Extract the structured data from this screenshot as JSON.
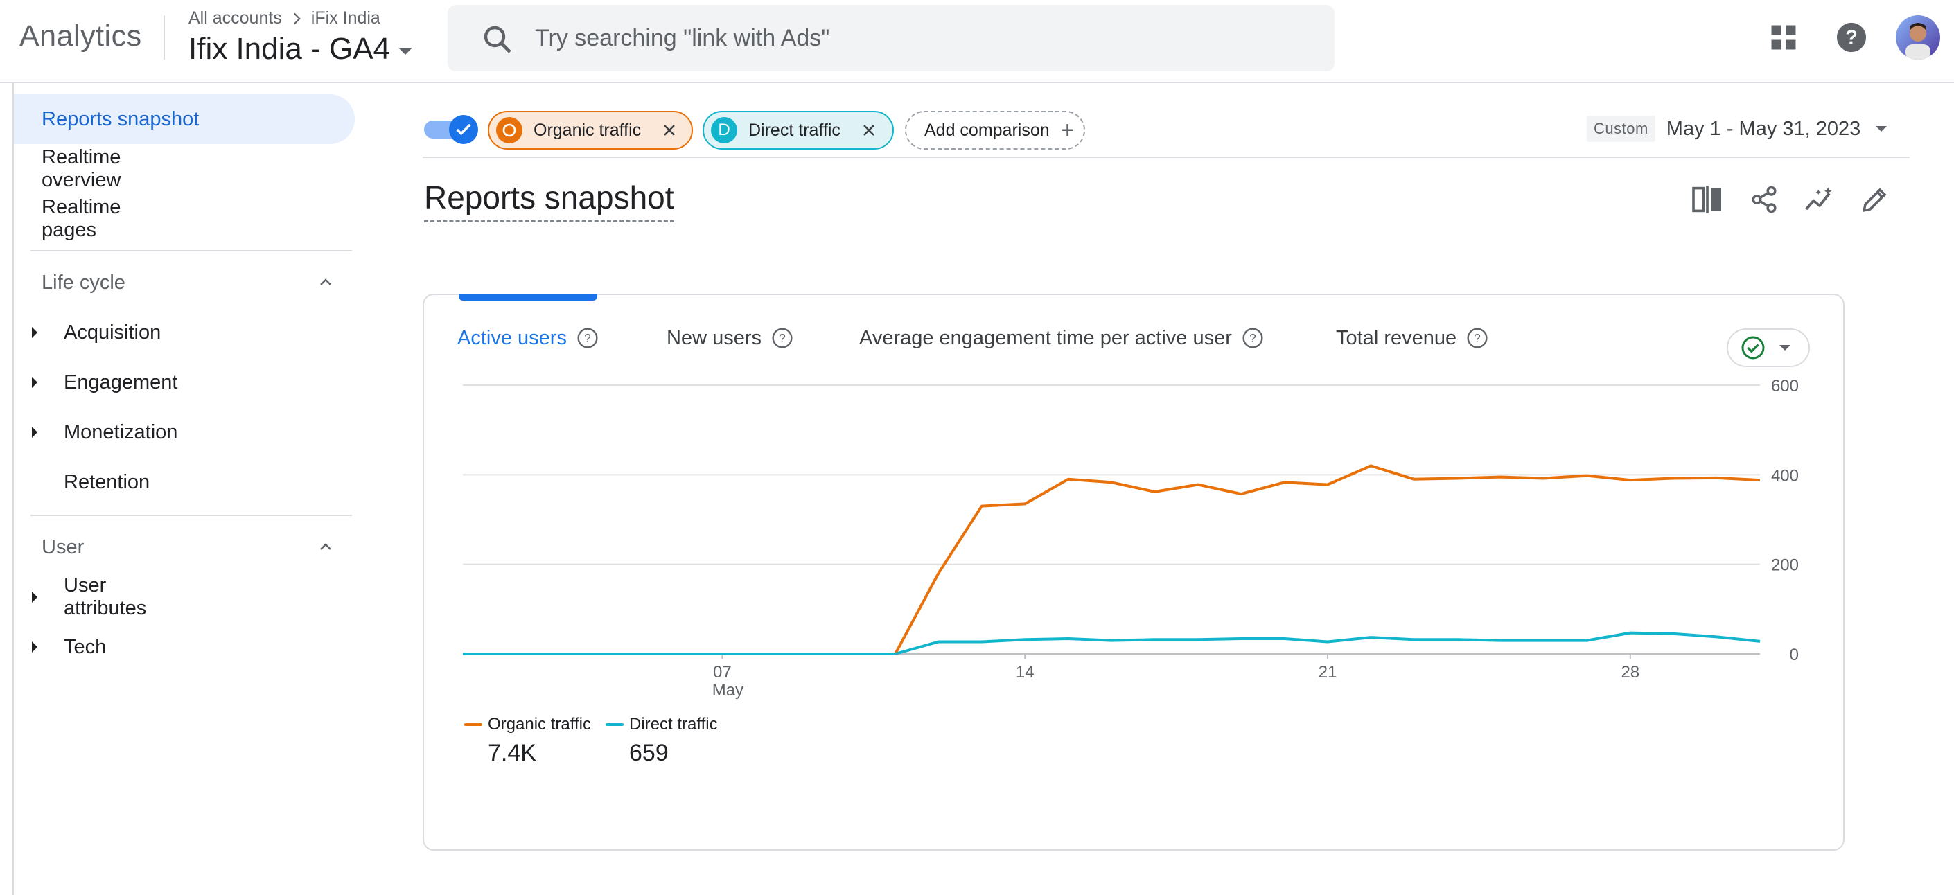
{
  "app": {
    "name": "Analytics"
  },
  "breadcrumb": {
    "root": "All accounts",
    "account": "iFix India"
  },
  "property": {
    "name": "Ifix India - GA4"
  },
  "search": {
    "placeholder": "Try searching \"link with Ads\""
  },
  "topbar_icons": [
    "apps-grid-icon",
    "help-icon",
    "avatar"
  ],
  "sidebar": {
    "items": [
      {
        "label": "Reports snapshot",
        "active": true
      },
      {
        "label": "Realtime overview"
      },
      {
        "label": "Realtime pages"
      }
    ],
    "sections": [
      {
        "title": "Life cycle",
        "expanded": true,
        "items": [
          {
            "label": "Acquisition",
            "expandable": true
          },
          {
            "label": "Engagement",
            "expandable": true
          },
          {
            "label": "Monetization",
            "expandable": true
          },
          {
            "label": "Retention",
            "expandable": false
          }
        ]
      },
      {
        "title": "User",
        "expanded": true,
        "items": [
          {
            "label": "User attributes",
            "expandable": true
          },
          {
            "label": "Tech",
            "expandable": true
          }
        ]
      }
    ]
  },
  "comparison": {
    "enabled": true,
    "chips": [
      {
        "badge": "O",
        "label": "Organic traffic",
        "color": "#e8710a"
      },
      {
        "badge": "D",
        "label": "Direct traffic",
        "color": "#12b5cb"
      }
    ],
    "add_label": "Add comparison"
  },
  "date_range": {
    "badge": "Custom",
    "value": "May 1 - May 31, 2023"
  },
  "page": {
    "title": "Reports snapshot"
  },
  "toolbar_icons": [
    "compare-columns-icon",
    "share-icon",
    "insights-icon",
    "edit-icon"
  ],
  "metric_tabs": [
    {
      "label": "Active users",
      "active": true
    },
    {
      "label": "New users"
    },
    {
      "label": "Average engagement time per active user"
    },
    {
      "label": "Total revenue"
    }
  ],
  "legend": [
    {
      "label": "Organic traffic",
      "total": "7.4K",
      "color": "#e8710a"
    },
    {
      "label": "Direct traffic",
      "total": "659",
      "color": "#12b5cb"
    }
  ],
  "chart_data": {
    "type": "line",
    "x": [
      "2023-05-01",
      "2023-05-02",
      "2023-05-03",
      "2023-05-04",
      "2023-05-05",
      "2023-05-06",
      "2023-05-07",
      "2023-05-08",
      "2023-05-09",
      "2023-05-10",
      "2023-05-11",
      "2023-05-12",
      "2023-05-13",
      "2023-05-14",
      "2023-05-15",
      "2023-05-16",
      "2023-05-17",
      "2023-05-18",
      "2023-05-19",
      "2023-05-20",
      "2023-05-21",
      "2023-05-22",
      "2023-05-23",
      "2023-05-24",
      "2023-05-25",
      "2023-05-26",
      "2023-05-27",
      "2023-05-28",
      "2023-05-29",
      "2023-05-30",
      "2023-05-31"
    ],
    "x_tick_labels": [
      {
        "x": "2023-05-07",
        "label": "07",
        "sublabel": "May"
      },
      {
        "x": "2023-05-14",
        "label": "14"
      },
      {
        "x": "2023-05-21",
        "label": "21"
      },
      {
        "x": "2023-05-28",
        "label": "28"
      }
    ],
    "y_ticks": [
      0,
      200,
      400,
      600
    ],
    "ylim": [
      0,
      600
    ],
    "y_axis_side": "right",
    "grid": true,
    "series": [
      {
        "name": "Organic traffic",
        "color": "#e8710a",
        "values": [
          0,
          0,
          0,
          0,
          0,
          0,
          0,
          0,
          0,
          0,
          0,
          180,
          330,
          335,
          390,
          383,
          362,
          378,
          357,
          383,
          378,
          420,
          390,
          392,
          395,
          392,
          398,
          388,
          392,
          393,
          388
        ]
      },
      {
        "name": "Direct traffic",
        "color": "#12b5cb",
        "values": [
          0,
          0,
          0,
          0,
          0,
          0,
          0,
          0,
          0,
          0,
          0,
          27,
          27,
          32,
          34,
          30,
          32,
          32,
          34,
          34,
          27,
          37,
          32,
          32,
          30,
          30,
          30,
          47,
          45,
          38,
          28
        ]
      }
    ],
    "legend_position": "bottom-left"
  }
}
